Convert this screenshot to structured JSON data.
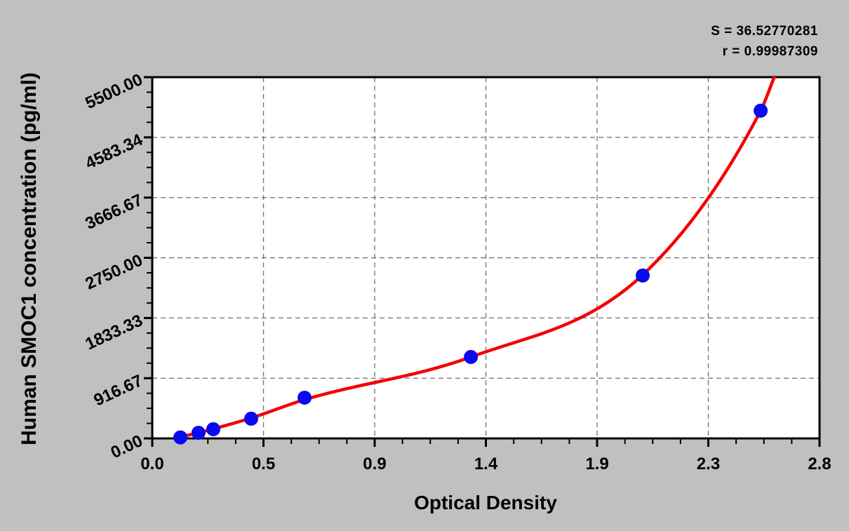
{
  "chart_data": {
    "type": "scatter",
    "xlabel": "Optical Density",
    "ylabel": "Human SMOC1 concentration (pg/ml)",
    "xlim": [
      0,
      2.8
    ],
    "ylim": [
      0,
      5500
    ],
    "x_ticks": [
      {
        "value": 0,
        "label": "0.0"
      },
      {
        "value": 0.4667,
        "label": "0.5"
      },
      {
        "value": 0.9333,
        "label": "0.9"
      },
      {
        "value": 1.4,
        "label": "1.4"
      },
      {
        "value": 1.8667,
        "label": "1.9"
      },
      {
        "value": 2.3333,
        "label": "2.3"
      },
      {
        "value": 2.8,
        "label": "2.8"
      }
    ],
    "y_ticks": [
      {
        "value": 0,
        "label": "0.00"
      },
      {
        "value": 916.67,
        "label": "916.67"
      },
      {
        "value": 1833.33,
        "label": "1833.33"
      },
      {
        "value": 2750,
        "label": "2750.00"
      },
      {
        "value": 3666.67,
        "label": "3666.67"
      },
      {
        "value": 4583.34,
        "label": "4583.34"
      },
      {
        "value": 5500,
        "label": "5500.00"
      }
    ],
    "minor_ticks_per_major": 4,
    "grid": "dashed at major ticks, both axes",
    "legend": "none",
    "points": [
      {
        "od": 0.118,
        "conc": 15
      },
      {
        "od": 0.194,
        "conc": 85
      },
      {
        "od": 0.256,
        "conc": 140
      },
      {
        "od": 0.415,
        "conc": 300
      },
      {
        "od": 0.639,
        "conc": 620
      },
      {
        "od": 1.337,
        "conc": 1240
      },
      {
        "od": 2.058,
        "conc": 2480
      },
      {
        "od": 2.553,
        "conc": 4990
      }
    ],
    "fit_curve_samples": [
      {
        "od": 0.105,
        "conc": 15
      },
      {
        "od": 0.194,
        "conc": 85
      },
      {
        "od": 0.256,
        "conc": 145
      },
      {
        "od": 0.415,
        "conc": 310
      },
      {
        "od": 0.639,
        "conc": 590
      },
      {
        "od": 1.337,
        "conc": 1240
      },
      {
        "od": 2.058,
        "conc": 2490
      },
      {
        "od": 2.553,
        "conc": 4990
      },
      {
        "od": 2.61,
        "conc": 5500
      }
    ],
    "annotations": {
      "s": "S = 36.52770281",
      "r": "r = 0.99987309"
    },
    "colors": {
      "background": "#c0c0c0",
      "plot_background": "#ffffff",
      "frame": "#000000",
      "grid": "#7a7a7a",
      "curve": "#f40000",
      "point": "#0a0af0",
      "text": "#000000"
    }
  }
}
